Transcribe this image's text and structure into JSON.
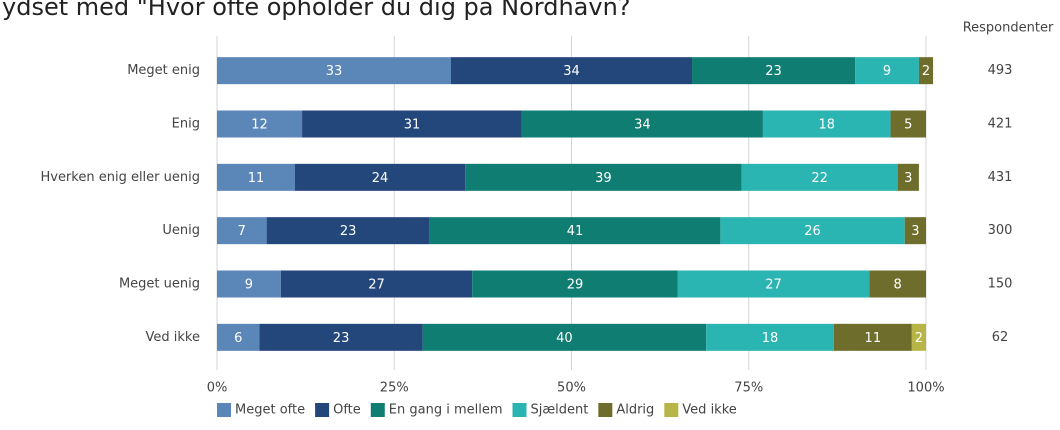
{
  "chart_data": {
    "type": "stacked_barh",
    "title": "ydset med \"Hvor ofte opholder du dig på Nordhavn?",
    "categories": [
      "Meget enig",
      "Enig",
      "Hverken enig eller uenig",
      "Uenig",
      "Meget uenig",
      "Ved ikke"
    ],
    "series": [
      {
        "name": "Meget ofte",
        "color": "#5b86b8",
        "values": [
          33,
          12,
          11,
          7,
          9,
          6
        ]
      },
      {
        "name": "Ofte",
        "color": "#23477a",
        "values": [
          34,
          31,
          24,
          23,
          27,
          23
        ]
      },
      {
        "name": "En gang i mellem",
        "color": "#107d73",
        "values": [
          23,
          34,
          39,
          41,
          29,
          40
        ]
      },
      {
        "name": "Sjældent",
        "color": "#2ab4b2",
        "values": [
          9,
          18,
          22,
          26,
          27,
          18
        ]
      },
      {
        "name": "Aldrig",
        "color": "#6e6d2c",
        "values": [
          2,
          5,
          3,
          3,
          8,
          11
        ]
      },
      {
        "name": "Ved ikke",
        "color": "#b8b548",
        "values": [
          null,
          null,
          null,
          null,
          null,
          2
        ]
      }
    ],
    "xlim": [
      0,
      100
    ],
    "xticks": [
      {
        "value": 0,
        "label": "0%"
      },
      {
        "value": 25,
        "label": "25%"
      },
      {
        "value": 50,
        "label": "50%"
      },
      {
        "value": 75,
        "label": "75%"
      },
      {
        "value": 100,
        "label": "100%"
      }
    ],
    "grid": true,
    "respondents_label": "Respondenter",
    "respondents": [
      493,
      421,
      431,
      300,
      150,
      62
    ],
    "legend": "bottom"
  }
}
